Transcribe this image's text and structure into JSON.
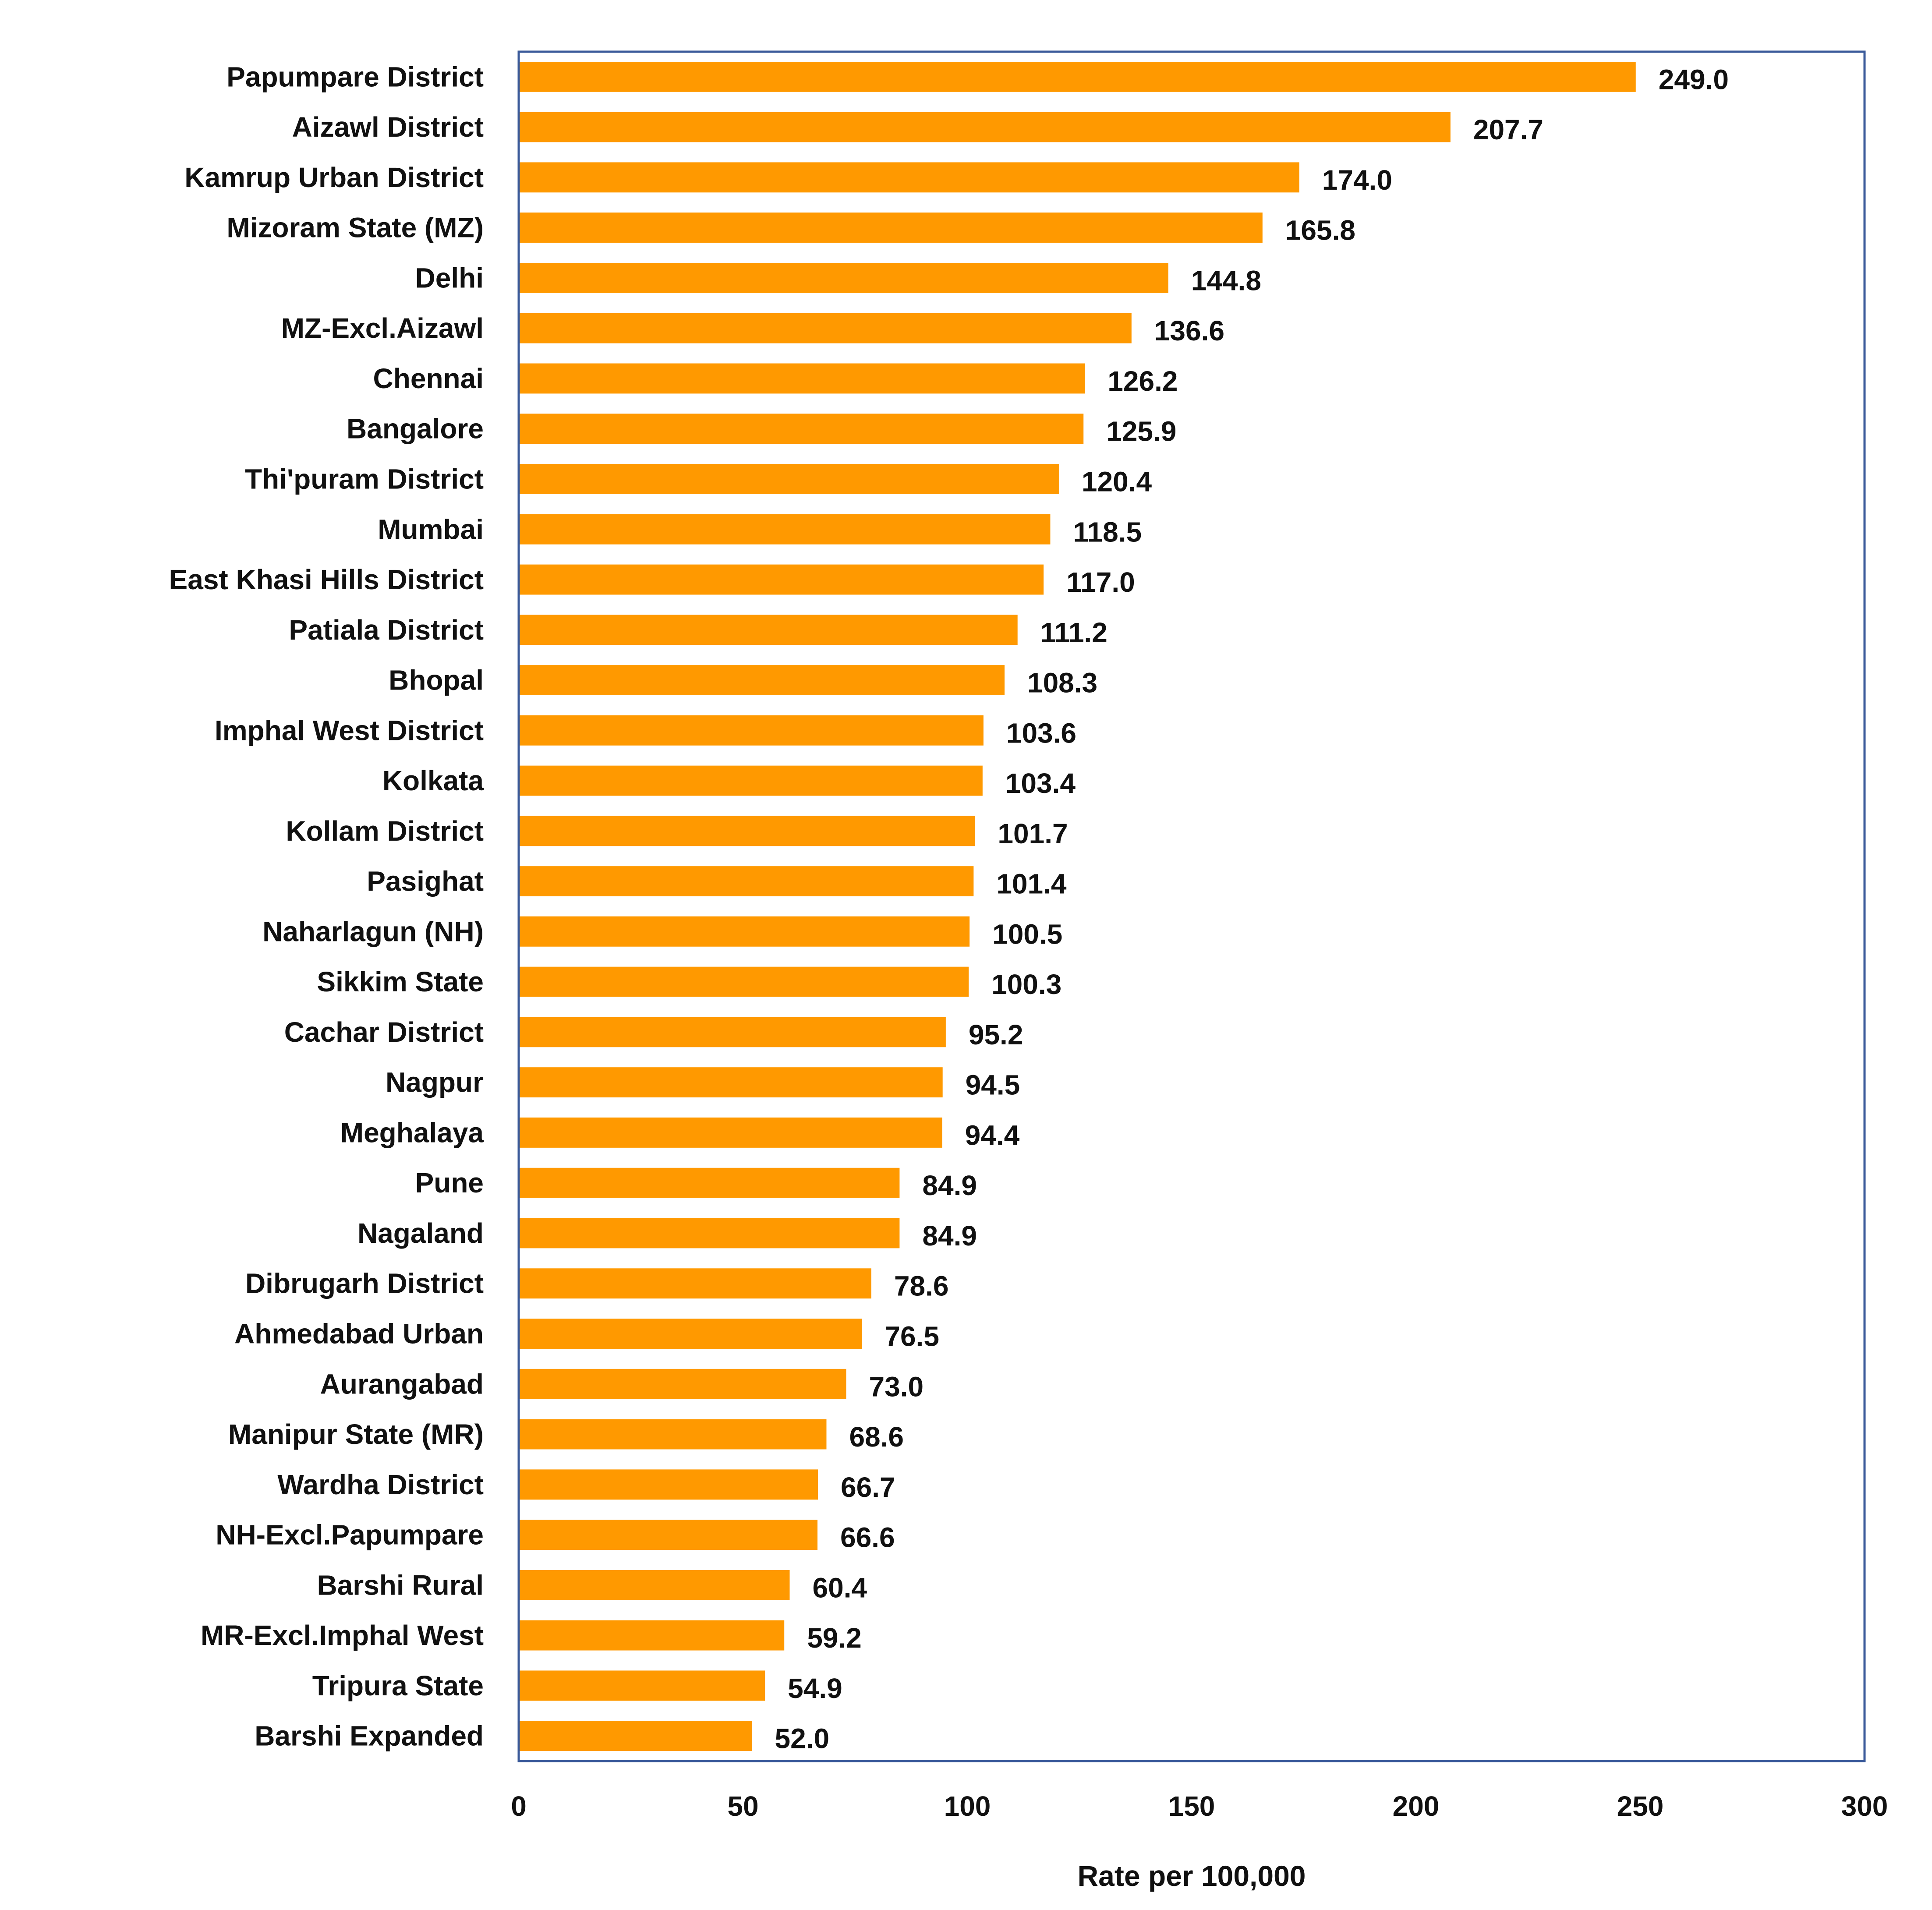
{
  "chart_data": {
    "type": "bar",
    "orientation": "horizontal",
    "categories": [
      "Papumpare District",
      "Aizawl District",
      "Kamrup Urban District",
      "Mizoram State (MZ)",
      "Delhi",
      "MZ-Excl.Aizawl",
      "Chennai",
      "Bangalore",
      "Thi'puram District",
      "Mumbai",
      "East Khasi Hills District",
      "Patiala District",
      "Bhopal",
      "Imphal West District",
      "Kolkata",
      "Kollam District",
      "Pasighat",
      "Naharlagun (NH)",
      "Sikkim State",
      "Cachar District",
      "Nagpur",
      "Meghalaya",
      "Pune",
      "Nagaland",
      "Dibrugarh District",
      "Ahmedabad Urban",
      "Aurangabad",
      "Manipur State (MR)",
      "Wardha District",
      "NH-Excl.Papumpare",
      "Barshi Rural",
      "MR-Excl.Imphal West",
      "Tripura State",
      "Barshi Expanded"
    ],
    "values": [
      249.0,
      207.7,
      174.0,
      165.8,
      144.8,
      136.6,
      126.2,
      125.9,
      120.4,
      118.5,
      117.0,
      111.2,
      108.3,
      103.6,
      103.4,
      101.7,
      101.4,
      100.5,
      100.3,
      95.2,
      94.5,
      94.4,
      84.9,
      84.9,
      78.6,
      76.5,
      73.0,
      68.6,
      66.7,
      66.6,
      60.4,
      59.2,
      54.9,
      52.0
    ],
    "value_labels": [
      "249.0",
      "207.7",
      "174.0",
      "165.8",
      "144.8",
      "136.6",
      "126.2",
      "125.9",
      "120.4",
      "118.5",
      "117.0",
      "111.2",
      "108.3",
      "103.6",
      "103.4",
      "101.7",
      "101.4",
      "100.5",
      "100.3",
      "95.2",
      "94.5",
      "94.4",
      "84.9",
      "84.9",
      "78.6",
      "76.5",
      "73.0",
      "68.6",
      "66.7",
      "66.6",
      "60.4",
      "59.2",
      "54.9",
      "52.0"
    ],
    "xlabel": "Rate per 100,000",
    "xlim": [
      0,
      300
    ],
    "xticks": [
      0,
      50,
      100,
      150,
      200,
      250,
      300
    ],
    "xtick_labels": [
      "0",
      "50",
      "100",
      "150",
      "200",
      "250",
      "300"
    ],
    "grid": false,
    "colors": {
      "bar": "#FF9900",
      "frame": "#3A5A9A",
      "text": "#111111"
    }
  }
}
